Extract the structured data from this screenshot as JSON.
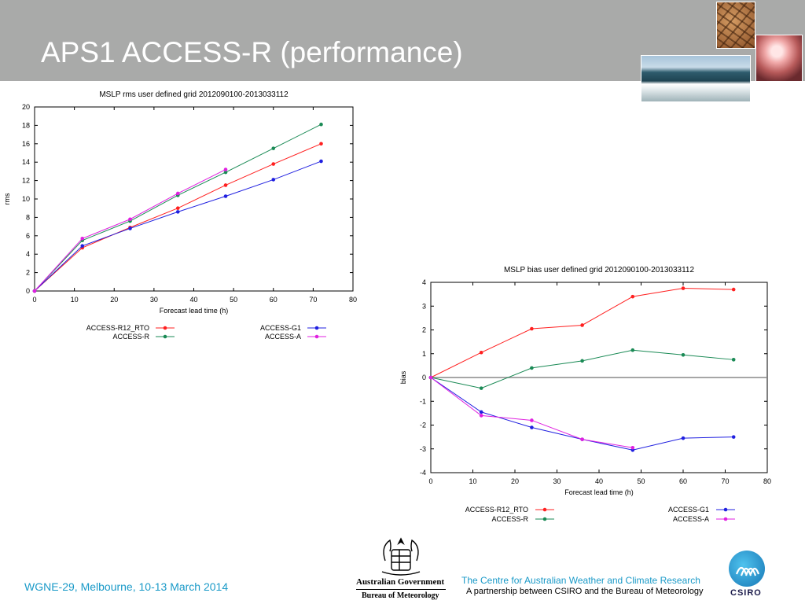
{
  "slide": {
    "title": "APS1 ACCESS-R (performance)",
    "header_color": "#a9aaa9",
    "footer_left": "WGNE-29, Melbourne, 10-13 March 2014",
    "footer_centre_line1": "The Centre for Australian Weather and Climate Research",
    "footer_centre_line2": "A partnership between CSIRO and the Bureau of Meteorology",
    "gov_line1": "Australian Government",
    "gov_line2": "Bureau of Meteorology",
    "csiro_label": "CSIRO",
    "images": [
      "cracked-earth-photo",
      "cloud-photo",
      "ocean-wave-photo"
    ]
  },
  "chart_data": [
    {
      "type": "line",
      "title": "MSLP rms user defined grid 2012090100-2013033112",
      "xlabel": "Forecast lead time (h)",
      "ylabel": "rms",
      "xlim": [
        0,
        80
      ],
      "ylim": [
        0,
        20
      ],
      "xticks": [
        0,
        10,
        20,
        30,
        40,
        50,
        60,
        70,
        80
      ],
      "yticks": [
        0,
        2,
        4,
        6,
        8,
        10,
        12,
        14,
        16,
        18,
        20
      ],
      "grid": false,
      "legend_position": "below",
      "series": [
        {
          "name": "ACCESS-R12_RTO",
          "color": "#ff2020",
          "x": [
            0,
            12,
            24,
            36,
            48,
            60,
            72
          ],
          "y": [
            0,
            4.7,
            6.9,
            9.0,
            11.5,
            13.8,
            16.0
          ]
        },
        {
          "name": "ACCESS-R",
          "color": "#1a8a55",
          "x": [
            0,
            12,
            24,
            36,
            48,
            60,
            72
          ],
          "y": [
            0,
            5.5,
            7.6,
            10.4,
            12.9,
            15.5,
            18.1
          ]
        },
        {
          "name": "ACCESS-G1",
          "color": "#2020e0",
          "x": [
            0,
            12,
            24,
            36,
            48,
            60,
            72
          ],
          "y": [
            0,
            4.9,
            6.8,
            8.6,
            10.3,
            12.1,
            14.1
          ]
        },
        {
          "name": "ACCESS-A",
          "color": "#e020e0",
          "x": [
            0,
            12,
            24,
            36,
            48
          ],
          "y": [
            0,
            5.7,
            7.8,
            10.6,
            13.2
          ]
        }
      ]
    },
    {
      "type": "line",
      "title": "MSLP bias user defined grid 2012090100-2013033112",
      "xlabel": "Forecast lead time (h)",
      "ylabel": "bias",
      "xlim": [
        0,
        80
      ],
      "ylim": [
        -4,
        4
      ],
      "xticks": [
        0,
        10,
        20,
        30,
        40,
        50,
        60,
        70,
        80
      ],
      "yticks": [
        -4,
        -3,
        -2,
        -1,
        0,
        1,
        2,
        3,
        4
      ],
      "grid": false,
      "zero_line": true,
      "legend_position": "below",
      "series": [
        {
          "name": "ACCESS-R12_RTO",
          "color": "#ff2020",
          "x": [
            0,
            12,
            24,
            36,
            48,
            60,
            72
          ],
          "y": [
            0,
            1.05,
            2.05,
            2.2,
            3.4,
            3.75,
            3.7
          ]
        },
        {
          "name": "ACCESS-R",
          "color": "#1a8a55",
          "x": [
            0,
            12,
            24,
            36,
            48,
            60,
            72
          ],
          "y": [
            0,
            -0.45,
            0.4,
            0.7,
            1.15,
            0.95,
            0.75
          ]
        },
        {
          "name": "ACCESS-G1",
          "color": "#2020e0",
          "x": [
            0,
            12,
            24,
            36,
            48,
            60,
            72
          ],
          "y": [
            0,
            -1.45,
            -2.1,
            -2.6,
            -3.05,
            -2.55,
            -2.5
          ]
        },
        {
          "name": "ACCESS-A",
          "color": "#e020e0",
          "x": [
            0,
            12,
            24,
            36,
            48
          ],
          "y": [
            0,
            -1.6,
            -1.8,
            -2.6,
            -2.95
          ]
        }
      ]
    }
  ]
}
